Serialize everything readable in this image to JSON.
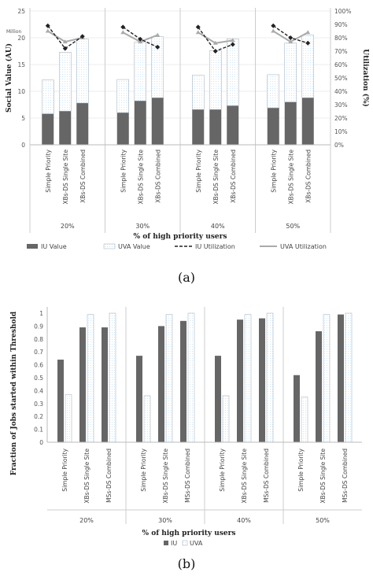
{
  "chart_data": [
    {
      "type": "bar",
      "panel_label": "(a)",
      "xlabel": "% of high priority users",
      "ylabel": "Social Value (AU)",
      "ylabel2": "Utilization (%)",
      "y_unit": "Million",
      "ylim": [
        0,
        25
      ],
      "y_ticks": [
        "0",
        "5",
        "10",
        "15",
        "20",
        "25"
      ],
      "ylim2": [
        0,
        100
      ],
      "y2_ticks": [
        "0%",
        "10%",
        "20%",
        "30%",
        "40%",
        "50%",
        "60%",
        "70%",
        "80%",
        "90%",
        "100%"
      ],
      "groups": [
        {
          "label": "20%",
          "categories": [
            "Simple Priority",
            "XBs-DS Single Site",
            "XBs-DS Combined"
          ]
        },
        {
          "label": "30%",
          "categories": [
            "Simple Priority",
            "XBs-DS Single Site",
            "XBs-DS Combined"
          ]
        },
        {
          "label": "40%",
          "categories": [
            "Simple Priority",
            "XBs-DS Single Site",
            "XBs-DS Combined"
          ]
        },
        {
          "label": "50%",
          "categories": [
            "Simple Priority",
            "XBs-DS Single Site",
            "XBs-DS Combined"
          ]
        }
      ],
      "stacked": true,
      "series": [
        {
          "name": "IU Value",
          "color": "#666666",
          "values": [
            [
              5.8,
              6.3,
              7.8
            ],
            [
              6.0,
              8.2,
              8.8
            ],
            [
              6.6,
              6.6,
              7.3
            ],
            [
              6.9,
              8.0,
              8.8
            ]
          ]
        },
        {
          "name": "UVA Value",
          "color": "#cfe6f5",
          "values": [
            [
              6.3,
              11.0,
              12.0
            ],
            [
              6.2,
              11.0,
              11.4
            ],
            [
              6.4,
              11.0,
              12.5
            ],
            [
              6.2,
              11.0,
              11.7
            ]
          ]
        }
      ],
      "lines": [
        {
          "name": "IU Utilization",
          "axis": "right",
          "color": "#222222",
          "values": [
            [
              89,
              72,
              81
            ],
            [
              88,
              79,
              73
            ],
            [
              88,
              70,
              75
            ],
            [
              89,
              80,
              76
            ]
          ]
        },
        {
          "name": "UVA Utilization",
          "axis": "right",
          "color": "#aaaaaa",
          "values": [
            [
              85,
              77,
              80
            ],
            [
              84,
              77,
              82
            ],
            [
              84,
              76,
              78
            ],
            [
              85,
              77,
              84
            ]
          ]
        }
      ],
      "legend": [
        "IU Value",
        "UVA Value",
        "IU Utilization",
        "UVA Utilization"
      ],
      "legend_position": "bottom"
    },
    {
      "type": "bar",
      "panel_label": "(b)",
      "xlabel": "% of high priority users",
      "ylabel": "Fraction of Jobs started within Threshold",
      "ylim": [
        0,
        1
      ],
      "y_ticks": [
        "0",
        "0.1",
        "0.2",
        "0.3",
        "0.4",
        "0.5",
        "0.6",
        "0.7",
        "0.8",
        "0.9",
        "1"
      ],
      "groups": [
        {
          "label": "20%",
          "categories": [
            "Simple Priority",
            "XBs-DS Single Site",
            "MSs-DS Combined"
          ]
        },
        {
          "label": "30%",
          "categories": [
            "Simple Priority",
            "XBs-DS Single Site",
            "MSs-DS Combined"
          ]
        },
        {
          "label": "40%",
          "categories": [
            "Simple Priority",
            "XBs-DS Single Site",
            "MSs-DS Combined"
          ]
        },
        {
          "label": "50%",
          "categories": [
            "Simple Priority",
            "XBs-DS Single Site",
            "MSs-DS Combined"
          ]
        }
      ],
      "series": [
        {
          "name": "IU",
          "color": "#666666",
          "values": [
            [
              0.64,
              0.89,
              0.89
            ],
            [
              0.67,
              0.9,
              0.94
            ],
            [
              0.67,
              0.95,
              0.96
            ],
            [
              0.52,
              0.86,
              0.99
            ]
          ]
        },
        {
          "name": "UVA",
          "color": "#cfe6f5",
          "values": [
            [
              0.37,
              0.99,
              1.0
            ],
            [
              0.36,
              0.99,
              1.0
            ],
            [
              0.36,
              0.99,
              1.0
            ],
            [
              0.35,
              0.99,
              1.0
            ]
          ]
        }
      ],
      "legend": [
        "IU",
        "UVA"
      ],
      "legend_position": "bottom"
    }
  ]
}
